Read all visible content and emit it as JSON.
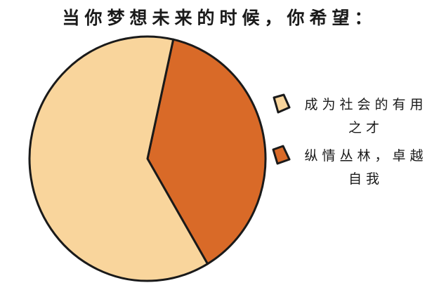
{
  "chart_data": {
    "type": "pie",
    "title": "当你梦想未来的时候，你希望：",
    "slices": [
      {
        "label": "成为社会的有用之才",
        "value": 62,
        "color": "#F9D59C"
      },
      {
        "label": "纵情丛林，卓越自我",
        "value": 38,
        "color": "#D96A28"
      }
    ],
    "legend_position": "right"
  }
}
